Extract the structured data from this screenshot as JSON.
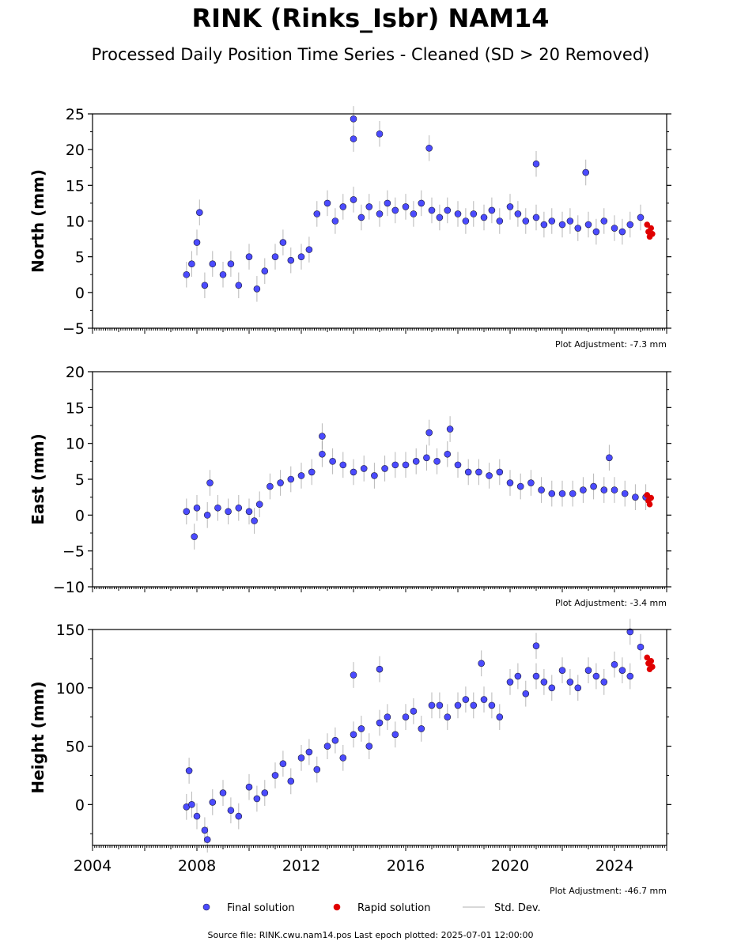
{
  "title": "RINK (Rinks_Isbr) NAM14",
  "subtitle": "Processed Daily Position Time Series - Cleaned (SD > 20 Removed)",
  "footer": "Source file: RINK.cwu.nam14.pos  Last epoch plotted: 2025-07-01 12:00:00",
  "colors": {
    "final": "#4b4bff",
    "final_edge": "#1a1a3a",
    "rapid": "#e00000",
    "stddev": "#9a9a9a",
    "axis": "#000000"
  },
  "chart_data": [
    {
      "type": "scatter",
      "ylabel": "North (mm)",
      "xlim": [
        2004,
        2026
      ],
      "ylim": [
        -5,
        25
      ],
      "yticks": [
        -5,
        0,
        5,
        10,
        15,
        20,
        25
      ],
      "adjustment": "Plot Adjustment: -7.3 mm",
      "show_xtick_labels": false,
      "series": [
        {
          "name": "Final solution",
          "points": [
            [
              2007.6,
              2.5
            ],
            [
              2007.8,
              4.0
            ],
            [
              2008.0,
              7.0
            ],
            [
              2008.3,
              1.0
            ],
            [
              2008.6,
              4.0
            ],
            [
              2009.0,
              2.5
            ],
            [
              2009.3,
              4.0
            ],
            [
              2009.6,
              1.0
            ],
            [
              2010.0,
              5.0
            ],
            [
              2010.3,
              0.5
            ],
            [
              2010.6,
              3.0
            ],
            [
              2011.0,
              5.0
            ],
            [
              2011.3,
              7.0
            ],
            [
              2011.6,
              4.5
            ],
            [
              2012.0,
              5.0
            ],
            [
              2012.3,
              6.0
            ],
            [
              2012.6,
              11.0
            ],
            [
              2013.0,
              12.5
            ],
            [
              2013.3,
              10.0
            ],
            [
              2013.6,
              12.0
            ],
            [
              2014.0,
              13.0
            ],
            [
              2014.3,
              10.5
            ],
            [
              2014.6,
              12.0
            ],
            [
              2015.0,
              11.0
            ],
            [
              2015.3,
              12.5
            ],
            [
              2015.6,
              11.5
            ],
            [
              2016.0,
              12.0
            ],
            [
              2016.3,
              11.0
            ],
            [
              2016.6,
              12.5
            ],
            [
              2017.0,
              11.5
            ],
            [
              2017.3,
              10.5
            ],
            [
              2017.6,
              11.5
            ],
            [
              2018.0,
              11.0
            ],
            [
              2018.3,
              10.0
            ],
            [
              2018.6,
              11.0
            ],
            [
              2019.0,
              10.5
            ],
            [
              2019.3,
              11.5
            ],
            [
              2019.6,
              10.0
            ],
            [
              2020.0,
              12.0
            ],
            [
              2020.3,
              11.0
            ],
            [
              2020.6,
              10.0
            ],
            [
              2021.0,
              10.5
            ],
            [
              2021.3,
              9.5
            ],
            [
              2021.6,
              10.0
            ],
            [
              2022.0,
              9.5
            ],
            [
              2022.3,
              10.0
            ],
            [
              2022.6,
              9.0
            ],
            [
              2023.0,
              9.5
            ],
            [
              2023.3,
              8.5
            ],
            [
              2023.6,
              10.0
            ],
            [
              2024.0,
              9.0
            ],
            [
              2024.3,
              8.5
            ],
            [
              2024.6,
              9.5
            ],
            [
              2025.0,
              10.5
            ],
            [
              2014.0,
              24.3
            ],
            [
              2014.0,
              21.5
            ],
            [
              2015.0,
              22.2
            ],
            [
              2016.9,
              20.2
            ],
            [
              2008.1,
              11.2
            ],
            [
              2021.0,
              18.0
            ],
            [
              2022.9,
              16.8
            ]
          ]
        },
        {
          "name": "Rapid solution",
          "points": [
            [
              2025.25,
              9.5
            ],
            [
              2025.3,
              8.5
            ],
            [
              2025.35,
              7.8
            ],
            [
              2025.4,
              9.0
            ],
            [
              2025.45,
              8.2
            ]
          ]
        }
      ]
    },
    {
      "type": "scatter",
      "ylabel": "East (mm)",
      "xlim": [
        2004,
        2026
      ],
      "ylim": [
        -10,
        20
      ],
      "yticks": [
        -10,
        -5,
        0,
        5,
        10,
        15,
        20
      ],
      "adjustment": "Plot Adjustment: -3.4 mm",
      "show_xtick_labels": false,
      "series": [
        {
          "name": "Final solution",
          "points": [
            [
              2007.6,
              0.5
            ],
            [
              2008.0,
              1.0
            ],
            [
              2008.4,
              0.0
            ],
            [
              2008.8,
              1.0
            ],
            [
              2009.2,
              0.5
            ],
            [
              2009.6,
              1.0
            ],
            [
              2010.0,
              0.5
            ],
            [
              2010.4,
              1.5
            ],
            [
              2010.8,
              4.0
            ],
            [
              2011.2,
              4.5
            ],
            [
              2011.6,
              5.0
            ],
            [
              2012.0,
              5.5
            ],
            [
              2012.4,
              6.0
            ],
            [
              2012.8,
              8.5
            ],
            [
              2013.2,
              7.5
            ],
            [
              2013.6,
              7.0
            ],
            [
              2014.0,
              6.0
            ],
            [
              2014.4,
              6.5
            ],
            [
              2014.8,
              5.5
            ],
            [
              2015.2,
              6.5
            ],
            [
              2015.6,
              7.0
            ],
            [
              2016.0,
              7.0
            ],
            [
              2016.4,
              7.5
            ],
            [
              2016.8,
              8.0
            ],
            [
              2017.2,
              7.5
            ],
            [
              2017.6,
              8.5
            ],
            [
              2018.0,
              7.0
            ],
            [
              2018.4,
              6.0
            ],
            [
              2018.8,
              6.0
            ],
            [
              2019.2,
              5.5
            ],
            [
              2019.6,
              6.0
            ],
            [
              2020.0,
              4.5
            ],
            [
              2020.4,
              4.0
            ],
            [
              2020.8,
              4.5
            ],
            [
              2021.2,
              3.5
            ],
            [
              2021.6,
              3.0
            ],
            [
              2022.0,
              3.0
            ],
            [
              2022.4,
              3.0
            ],
            [
              2022.8,
              3.5
            ],
            [
              2023.2,
              4.0
            ],
            [
              2023.6,
              3.5
            ],
            [
              2024.0,
              3.5
            ],
            [
              2024.4,
              3.0
            ],
            [
              2024.8,
              2.5
            ],
            [
              2025.2,
              2.5
            ],
            [
              2012.8,
              11.0
            ],
            [
              2016.9,
              11.5
            ],
            [
              2017.7,
              12.0
            ],
            [
              2008.5,
              4.5
            ],
            [
              2010.2,
              -0.8
            ],
            [
              2007.9,
              -3.0
            ],
            [
              2023.8,
              8.0
            ]
          ]
        },
        {
          "name": "Rapid solution",
          "points": [
            [
              2025.25,
              2.8
            ],
            [
              2025.3,
              2.0
            ],
            [
              2025.35,
              1.5
            ],
            [
              2025.4,
              2.4
            ]
          ]
        }
      ]
    },
    {
      "type": "scatter",
      "ylabel": "Height (mm)",
      "xlim": [
        2004,
        2026
      ],
      "ylim": [
        -35,
        150
      ],
      "yticks": [
        0,
        50,
        100,
        150
      ],
      "adjustment": "Plot Adjustment: -46.7 mm",
      "show_xtick_labels": true,
      "xticks": [
        2004,
        2008,
        2012,
        2016,
        2020,
        2024
      ],
      "series": [
        {
          "name": "Final solution",
          "points": [
            [
              2007.6,
              -2.0
            ],
            [
              2007.8,
              0.0
            ],
            [
              2008.0,
              -10.0
            ],
            [
              2008.3,
              -22.0
            ],
            [
              2008.6,
              2.0
            ],
            [
              2009.0,
              10.0
            ],
            [
              2009.3,
              -5.0
            ],
            [
              2009.6,
              -10.0
            ],
            [
              2010.0,
              15.0
            ],
            [
              2010.3,
              5.0
            ],
            [
              2010.6,
              10.0
            ],
            [
              2011.0,
              25.0
            ],
            [
              2011.3,
              35.0
            ],
            [
              2011.6,
              20.0
            ],
            [
              2012.0,
              40.0
            ],
            [
              2012.3,
              45.0
            ],
            [
              2012.6,
              30.0
            ],
            [
              2013.0,
              50.0
            ],
            [
              2013.3,
              55.0
            ],
            [
              2013.6,
              40.0
            ],
            [
              2014.0,
              60.0
            ],
            [
              2014.3,
              65.0
            ],
            [
              2014.6,
              50.0
            ],
            [
              2015.0,
              70.0
            ],
            [
              2015.3,
              75.0
            ],
            [
              2015.6,
              60.0
            ],
            [
              2016.0,
              75.0
            ],
            [
              2016.3,
              80.0
            ],
            [
              2016.6,
              65.0
            ],
            [
              2017.0,
              85.0
            ],
            [
              2017.3,
              85.0
            ],
            [
              2017.6,
              75.0
            ],
            [
              2018.0,
              85.0
            ],
            [
              2018.3,
              90.0
            ],
            [
              2018.6,
              85.0
            ],
            [
              2019.0,
              90.0
            ],
            [
              2019.3,
              85.0
            ],
            [
              2019.6,
              75.0
            ],
            [
              2020.0,
              105.0
            ],
            [
              2020.3,
              110.0
            ],
            [
              2020.6,
              95.0
            ],
            [
              2021.0,
              110.0
            ],
            [
              2021.3,
              105.0
            ],
            [
              2021.6,
              100.0
            ],
            [
              2022.0,
              115.0
            ],
            [
              2022.3,
              105.0
            ],
            [
              2022.6,
              100.0
            ],
            [
              2023.0,
              115.0
            ],
            [
              2023.3,
              110.0
            ],
            [
              2023.6,
              105.0
            ],
            [
              2024.0,
              120.0
            ],
            [
              2024.3,
              115.0
            ],
            [
              2024.6,
              110.0
            ],
            [
              2025.0,
              135.0
            ],
            [
              2014.0,
              111.0
            ],
            [
              2015.0,
              116.0
            ],
            [
              2018.9,
              121.0
            ],
            [
              2021.0,
              136.0
            ],
            [
              2007.7,
              29.0
            ],
            [
              2024.6,
              148.0
            ],
            [
              2008.4,
              -30.0
            ]
          ]
        },
        {
          "name": "Rapid solution",
          "points": [
            [
              2025.25,
              126.0
            ],
            [
              2025.3,
              121.0
            ],
            [
              2025.35,
              116.0
            ],
            [
              2025.4,
              123.0
            ],
            [
              2025.45,
              118.0
            ]
          ]
        }
      ]
    }
  ],
  "legend": [
    {
      "label": "Final solution",
      "kind": "final"
    },
    {
      "label": "Rapid solution",
      "kind": "rapid"
    },
    {
      "label": "Std. Dev.",
      "kind": "stddev"
    }
  ]
}
